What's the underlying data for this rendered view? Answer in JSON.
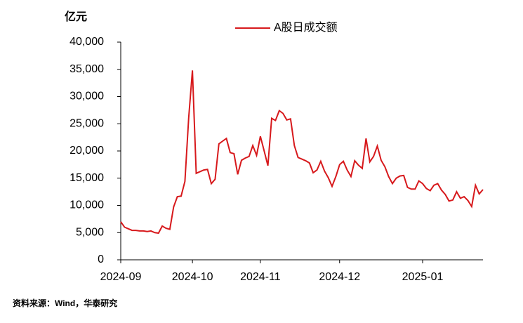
{
  "chart_data": {
    "type": "line",
    "y_unit_label": "亿元",
    "source": "资料来源：Wind，华泰研究",
    "categories": [
      "2024-09",
      null,
      null,
      null,
      null,
      null,
      null,
      null,
      null,
      null,
      null,
      null,
      null,
      null,
      null,
      null,
      null,
      null,
      null,
      "2024-10",
      null,
      null,
      null,
      null,
      null,
      null,
      null,
      null,
      null,
      null,
      null,
      null,
      null,
      null,
      null,
      null,
      null,
      "2024-11",
      null,
      null,
      null,
      null,
      null,
      null,
      null,
      null,
      null,
      null,
      null,
      null,
      null,
      null,
      null,
      null,
      null,
      null,
      null,
      null,
      "2024-12",
      null,
      null,
      null,
      null,
      null,
      null,
      null,
      null,
      null,
      null,
      null,
      null,
      null,
      null,
      null,
      null,
      null,
      null,
      null,
      null,
      null,
      "2025-01",
      null,
      null,
      null,
      null,
      null,
      null,
      null,
      null,
      null,
      null,
      null,
      null,
      null,
      null,
      null,
      null
    ],
    "series": [
      {
        "name": "A股日成交额",
        "color": "#d7191c",
        "values": [
          7000,
          6000,
          5700,
          5400,
          5400,
          5300,
          5300,
          5200,
          5300,
          5000,
          4900,
          6200,
          5800,
          5600,
          9700,
          11600,
          11700,
          14400,
          26100,
          34800,
          15900,
          16200,
          16500,
          16600,
          14000,
          14800,
          21300,
          21800,
          22300,
          19700,
          19500,
          15700,
          18300,
          18700,
          19000,
          21000,
          19200,
          22700,
          20000,
          17300,
          26000,
          25600,
          27400,
          26900,
          25700,
          25900,
          21000,
          18800,
          18500,
          18200,
          17800,
          16000,
          16500,
          18100,
          16300,
          15100,
          13500,
          15300,
          17500,
          18100,
          16500,
          15300,
          18200,
          17400,
          16800,
          22300,
          18000,
          19000,
          20900,
          18300,
          17100,
          15300,
          14000,
          15000,
          15400,
          15500,
          13300,
          13000,
          13000,
          14500,
          14000,
          13100,
          12700,
          13700,
          14000,
          12800,
          12000,
          10800,
          11000,
          12500,
          11300,
          11600,
          10900,
          9800,
          13700,
          12100,
          12900
        ]
      }
    ],
    "ylim": [
      0,
      40000
    ],
    "yticks": [
      0,
      {
        "value": 5000,
        "label": "5,000"
      },
      {
        "value": 10000,
        "label": "10,000"
      },
      {
        "value": 15000,
        "label": "15,000"
      },
      {
        "value": 20000,
        "label": "20,000"
      },
      {
        "value": 25000,
        "label": "25,000"
      },
      {
        "value": 30000,
        "label": "30,000"
      },
      {
        "value": 35000,
        "label": "35,000"
      },
      {
        "value": 40000,
        "label": "40,000"
      }
    ],
    "grid": false,
    "legend": "top"
  }
}
